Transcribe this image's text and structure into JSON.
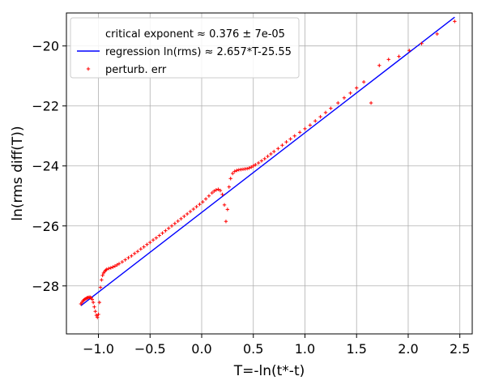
{
  "chart_data": {
    "type": "scatter",
    "xlabel": "T=-ln(t*-t)",
    "ylabel": "ln(rms diff(T))",
    "xlim": [
      -1.31,
      2.62
    ],
    "ylim": [
      -29.6,
      -18.9
    ],
    "xticks": [
      -1.0,
      -0.5,
      0.0,
      0.5,
      1.0,
      1.5,
      2.0,
      2.5
    ],
    "xtick_labels": [
      "−1.0",
      "−0.5",
      "0.0",
      "0.5",
      "1.0",
      "1.5",
      "2.0",
      "2.5"
    ],
    "yticks": [
      -28,
      -26,
      -24,
      -22,
      -20
    ],
    "ytick_labels": [
      "−28",
      "−26",
      "−24",
      "−22",
      "−20"
    ],
    "grid": true,
    "legend": {
      "placement": "top-left",
      "entries": [
        {
          "label": "critical exponent ≈ 0.376 ± 7e-05",
          "marker": "none"
        },
        {
          "label": "regression ln(rms) ≈ 2.657*T-25.55",
          "marker": "line",
          "color": "#0000ff"
        },
        {
          "label": "perturb. err",
          "marker": "plus",
          "color": "#ff0000"
        }
      ]
    },
    "series": [
      {
        "type": "line",
        "color": "#0000ff",
        "slope": 2.657,
        "intercept": -25.55,
        "x_range": [
          -1.17,
          2.45
        ]
      },
      {
        "type": "scatter",
        "marker": "plus",
        "color": "#ff0000",
        "points": [
          [
            -1.17,
            -28.6
          ],
          [
            -1.16,
            -28.55
          ],
          [
            -1.15,
            -28.5
          ],
          [
            -1.14,
            -28.47
          ],
          [
            -1.13,
            -28.44
          ],
          [
            -1.12,
            -28.42
          ],
          [
            -1.11,
            -28.4
          ],
          [
            -1.1,
            -28.39
          ],
          [
            -1.09,
            -28.38
          ],
          [
            -1.08,
            -28.38
          ],
          [
            -1.07,
            -28.4
          ],
          [
            -1.06,
            -28.45
          ],
          [
            -1.05,
            -28.55
          ],
          [
            -1.04,
            -28.7
          ],
          [
            -1.03,
            -28.85
          ],
          [
            -1.02,
            -28.98
          ],
          [
            -1.01,
            -29.05
          ],
          [
            -1.0,
            -28.95
          ],
          [
            -0.99,
            -28.55
          ],
          [
            -0.98,
            -28.05
          ],
          [
            -0.97,
            -27.8
          ],
          [
            -0.96,
            -27.65
          ],
          [
            -0.95,
            -27.57
          ],
          [
            -0.94,
            -27.52
          ],
          [
            -0.93,
            -27.48
          ],
          [
            -0.92,
            -27.45
          ],
          [
            -0.9,
            -27.42
          ],
          [
            -0.88,
            -27.4
          ],
          [
            -0.86,
            -27.37
          ],
          [
            -0.84,
            -27.34
          ],
          [
            -0.82,
            -27.3
          ],
          [
            -0.8,
            -27.26
          ],
          [
            -0.77,
            -27.2
          ],
          [
            -0.74,
            -27.13
          ],
          [
            -0.71,
            -27.06
          ],
          [
            -0.68,
            -27.0
          ],
          [
            -0.65,
            -26.92
          ],
          [
            -0.62,
            -26.85
          ],
          [
            -0.59,
            -26.77
          ],
          [
            -0.56,
            -26.7
          ],
          [
            -0.53,
            -26.62
          ],
          [
            -0.5,
            -26.55
          ],
          [
            -0.47,
            -26.47
          ],
          [
            -0.44,
            -26.4
          ],
          [
            -0.41,
            -26.32
          ],
          [
            -0.38,
            -26.24
          ],
          [
            -0.35,
            -26.16
          ],
          [
            -0.32,
            -26.08
          ],
          [
            -0.29,
            -26.0
          ],
          [
            -0.26,
            -25.92
          ],
          [
            -0.23,
            -25.84
          ],
          [
            -0.2,
            -25.76
          ],
          [
            -0.17,
            -25.68
          ],
          [
            -0.14,
            -25.6
          ],
          [
            -0.11,
            -25.52
          ],
          [
            -0.08,
            -25.44
          ],
          [
            -0.05,
            -25.36
          ],
          [
            -0.02,
            -25.28
          ],
          [
            0.01,
            -25.2
          ],
          [
            0.04,
            -25.1
          ],
          [
            0.07,
            -25.0
          ],
          [
            0.1,
            -24.9
          ],
          [
            0.12,
            -24.84
          ],
          [
            0.14,
            -24.8
          ],
          [
            0.16,
            -24.78
          ],
          [
            0.18,
            -24.82
          ],
          [
            0.2,
            -24.95
          ],
          [
            0.22,
            -25.3
          ],
          [
            0.235,
            -25.85
          ],
          [
            0.25,
            -25.45
          ],
          [
            0.265,
            -24.7
          ],
          [
            0.28,
            -24.42
          ],
          [
            0.3,
            -24.25
          ],
          [
            0.32,
            -24.18
          ],
          [
            0.34,
            -24.15
          ],
          [
            0.36,
            -24.13
          ],
          [
            0.38,
            -24.12
          ],
          [
            0.4,
            -24.11
          ],
          [
            0.42,
            -24.1
          ],
          [
            0.44,
            -24.09
          ],
          [
            0.46,
            -24.07
          ],
          [
            0.48,
            -24.04
          ],
          [
            0.5,
            -24.0
          ],
          [
            0.52,
            -23.96
          ],
          [
            0.55,
            -23.9
          ],
          [
            0.58,
            -23.83
          ],
          [
            0.61,
            -23.76
          ],
          [
            0.64,
            -23.68
          ],
          [
            0.67,
            -23.6
          ],
          [
            0.7,
            -23.52
          ],
          [
            0.74,
            -23.42
          ],
          [
            0.78,
            -23.31
          ],
          [
            0.82,
            -23.2
          ],
          [
            0.86,
            -23.1
          ],
          [
            0.9,
            -23.0
          ],
          [
            0.95,
            -22.88
          ],
          [
            1.0,
            -22.76
          ],
          [
            1.05,
            -22.64
          ],
          [
            1.1,
            -22.5
          ],
          [
            1.15,
            -22.36
          ],
          [
            1.2,
            -22.22
          ],
          [
            1.25,
            -22.08
          ],
          [
            1.32,
            -21.9
          ],
          [
            1.38,
            -21.73
          ],
          [
            1.44,
            -21.57
          ],
          [
            1.5,
            -21.4
          ],
          [
            1.57,
            -21.2
          ],
          [
            1.64,
            -21.9
          ],
          [
            1.72,
            -20.65
          ],
          [
            1.81,
            -20.45
          ],
          [
            1.91,
            -20.35
          ],
          [
            2.01,
            -20.15
          ],
          [
            2.13,
            -19.92
          ],
          [
            2.28,
            -19.6
          ],
          [
            2.45,
            -19.18
          ]
        ]
      }
    ]
  }
}
